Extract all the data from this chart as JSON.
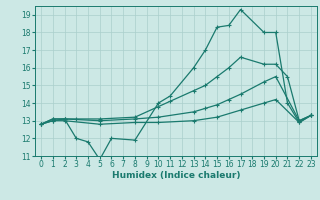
{
  "line1_x": [
    0,
    1,
    2,
    3,
    4,
    5,
    6,
    8,
    10,
    11,
    13,
    14,
    15,
    16,
    17,
    19,
    20,
    21,
    22,
    23
  ],
  "line1_y": [
    12.8,
    13.1,
    13.1,
    12.0,
    11.8,
    10.8,
    12.0,
    11.9,
    14.0,
    14.4,
    16.0,
    17.0,
    18.3,
    18.4,
    19.3,
    18.0,
    18.0,
    14.0,
    12.9,
    13.3
  ],
  "line2_x": [
    0,
    1,
    2,
    3,
    5,
    8,
    10,
    11,
    13,
    14,
    15,
    16,
    17,
    19,
    20,
    21,
    22,
    23
  ],
  "line2_y": [
    12.8,
    13.1,
    13.1,
    13.1,
    13.1,
    13.2,
    13.8,
    14.1,
    14.7,
    15.0,
    15.5,
    16.0,
    16.6,
    16.2,
    16.2,
    15.5,
    13.0,
    13.3
  ],
  "line3_x": [
    0,
    1,
    2,
    5,
    8,
    10,
    13,
    14,
    15,
    16,
    17,
    19,
    20,
    22,
    23
  ],
  "line3_y": [
    12.8,
    13.0,
    13.1,
    13.0,
    13.1,
    13.2,
    13.5,
    13.7,
    13.9,
    14.2,
    14.5,
    15.2,
    15.5,
    13.0,
    13.3
  ],
  "line4_x": [
    0,
    1,
    2,
    5,
    8,
    10,
    13,
    15,
    17,
    19,
    20,
    22,
    23
  ],
  "line4_y": [
    12.8,
    13.0,
    13.0,
    12.8,
    12.9,
    12.9,
    13.0,
    13.2,
    13.6,
    14.0,
    14.2,
    12.9,
    13.3
  ],
  "x_ticks": [
    0,
    1,
    2,
    3,
    4,
    5,
    6,
    7,
    8,
    9,
    10,
    11,
    12,
    13,
    14,
    15,
    16,
    17,
    18,
    19,
    20,
    21,
    22,
    23
  ],
  "yticks": [
    11,
    12,
    13,
    14,
    15,
    16,
    17,
    18,
    19
  ],
  "line_color": "#1a7a6e",
  "bg_color": "#cce8e5",
  "grid_color": "#aacfcc",
  "xlabel": "Humidex (Indice chaleur)",
  "ylim": [
    11,
    19.5
  ],
  "xlim": [
    -0.5,
    23.5
  ],
  "axis_fontsize": 6.5,
  "tick_fontsize": 5.5
}
